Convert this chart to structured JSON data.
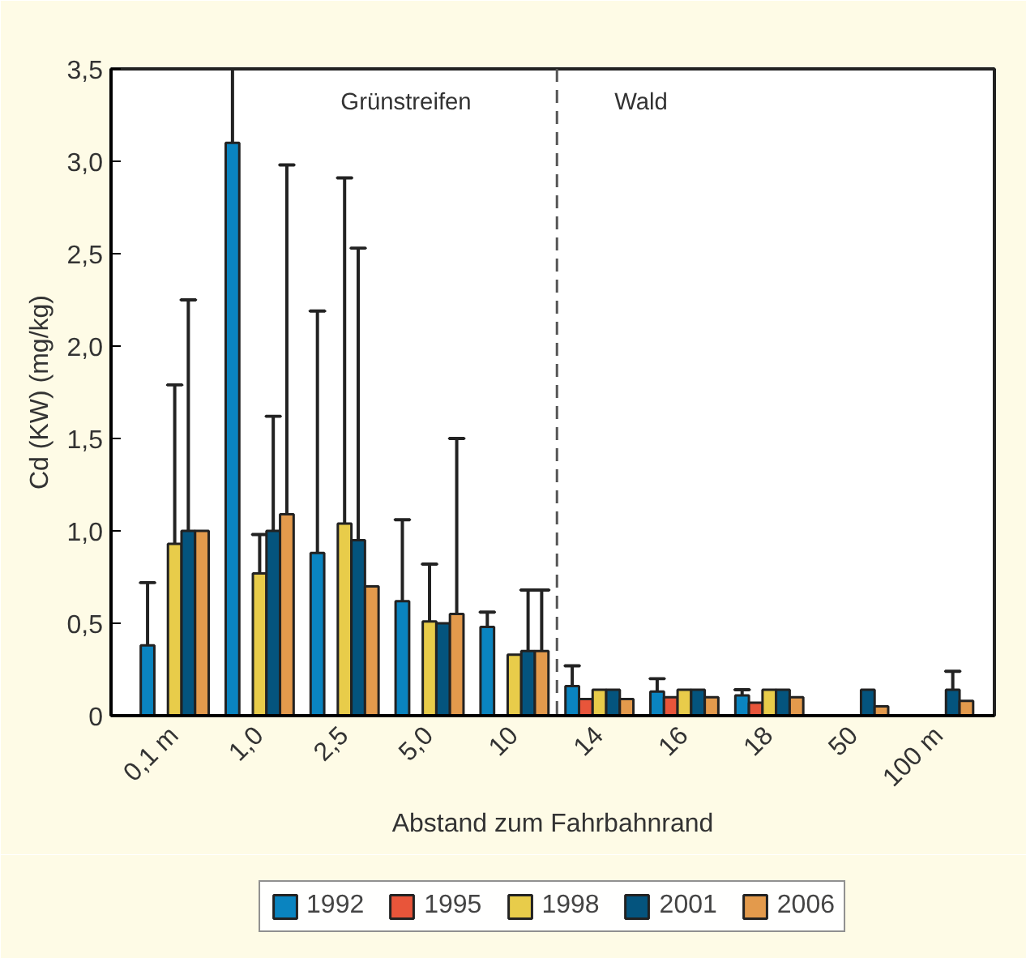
{
  "chart_data": {
    "type": "bar",
    "xlabel": "Abstand zum Fahrbahnrand",
    "ylabel": "Cd (KW) (mg/kg)",
    "categories": [
      "0,1 m",
      "1,0",
      "2,5",
      "5,0",
      "10",
      "14",
      "16",
      "18",
      "50",
      "100 m"
    ],
    "series": [
      {
        "name": "1992",
        "color": "#0a84c0",
        "values": [
          0.38,
          3.1,
          0.88,
          0.62,
          0.48,
          0.16,
          0.13,
          0.11,
          null,
          null
        ],
        "errors": [
          [
            0.38,
            0.72
          ],
          [
            3.1,
            3.5
          ],
          [
            0.88,
            2.19
          ],
          [
            0.62,
            1.06
          ],
          [
            0.48,
            0.56
          ],
          [
            0.16,
            0.27
          ],
          [
            0.13,
            0.2
          ],
          [
            0.11,
            0.14
          ],
          null,
          null
        ]
      },
      {
        "name": "1995",
        "color": "#e8553a",
        "values": [
          null,
          null,
          null,
          null,
          null,
          0.09,
          0.1,
          0.07,
          null,
          null
        ]
      },
      {
        "name": "1998",
        "color": "#e8cc4a",
        "values": [
          0.93,
          0.77,
          1.04,
          0.51,
          0.33,
          0.14,
          0.14,
          0.14,
          null,
          null
        ],
        "errors": [
          [
            0.93,
            1.79
          ],
          [
            0.77,
            0.98
          ],
          [
            1.04,
            2.91
          ],
          [
            0.51,
            0.82
          ],
          null,
          null,
          null,
          null,
          null,
          null
        ]
      },
      {
        "name": "2001",
        "color": "#04547e",
        "values": [
          1.0,
          1.0,
          0.95,
          0.5,
          0.35,
          0.14,
          0.14,
          0.14,
          0.14,
          0.14
        ],
        "errors": [
          [
            1.0,
            2.25
          ],
          [
            1.0,
            1.62
          ],
          [
            0.95,
            2.53
          ],
          null,
          [
            0.35,
            0.68
          ],
          null,
          null,
          null,
          null,
          [
            0.14,
            0.24
          ]
        ]
      },
      {
        "name": "2006",
        "color": "#e39a4c",
        "values": [
          1.0,
          1.09,
          0.7,
          0.55,
          0.35,
          0.09,
          0.1,
          0.1,
          0.05,
          0.08
        ],
        "errors": [
          null,
          [
            1.09,
            2.98
          ],
          null,
          [
            0.55,
            1.5
          ],
          [
            0.35,
            0.68
          ],
          null,
          null,
          null,
          null,
          null
        ]
      }
    ],
    "ylim": [
      0,
      3.5
    ],
    "yticks": [
      0,
      {
        "value": 0.5,
        "label": "0,5"
      },
      {
        "value": 1,
        "label": "1,0"
      },
      {
        "value": 1.5,
        "label": "1,5"
      },
      {
        "value": 2,
        "label": "2,0"
      },
      {
        "value": 2.5,
        "label": "2,5"
      },
      {
        "value": 3,
        "label": "3,0"
      },
      {
        "value": 3.5,
        "label": "3,5"
      }
    ],
    "annotations": [
      "Grünstreifen",
      "Wald"
    ],
    "grid": false,
    "legend": "bottom"
  }
}
